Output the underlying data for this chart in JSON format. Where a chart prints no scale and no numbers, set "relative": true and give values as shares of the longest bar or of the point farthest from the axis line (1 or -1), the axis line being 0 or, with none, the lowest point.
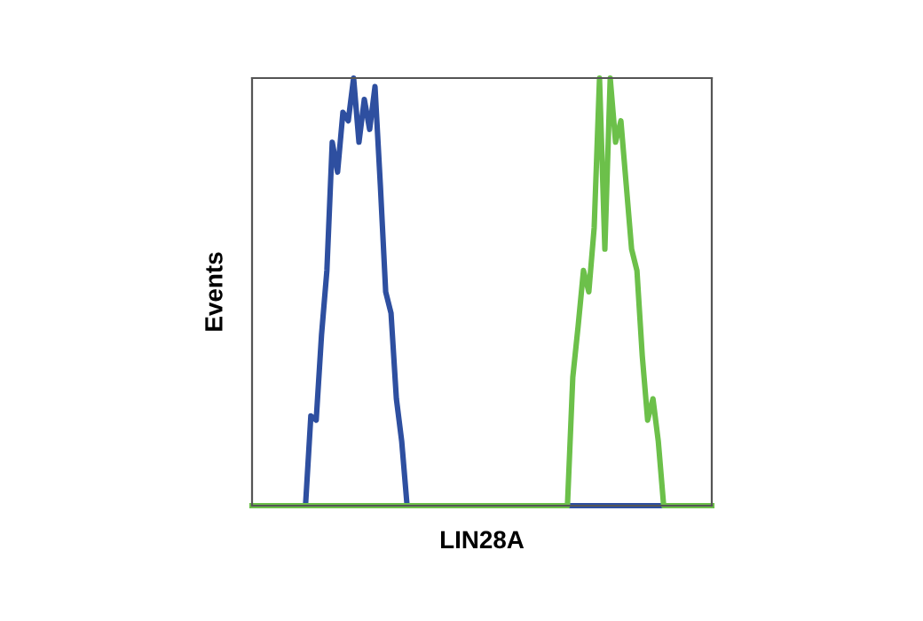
{
  "chart_data": {
    "type": "line",
    "relative": true,
    "xlabel": "LIN28A",
    "ylabel": "Events",
    "categories": [
      null,
      null,
      null,
      null,
      null,
      null,
      null,
      null,
      null,
      null,
      null,
      null,
      null,
      null,
      null,
      null,
      null,
      null,
      null,
      null,
      null,
      null,
      null,
      null,
      null,
      null,
      null,
      null,
      null,
      null,
      null,
      null,
      null,
      null,
      null,
      null,
      null,
      null,
      null,
      null,
      null,
      null,
      null,
      null,
      null,
      null,
      null,
      null,
      null,
      null,
      null,
      null,
      null,
      null,
      null,
      null,
      null,
      null,
      null,
      null,
      null,
      null,
      null,
      null,
      null,
      null,
      null,
      null,
      null,
      null,
      null,
      null,
      null,
      null,
      null,
      null,
      null,
      null,
      null,
      null,
      null,
      null,
      null,
      null,
      null,
      null,
      null
    ],
    "series": [
      {
        "color": "#2e4fa0",
        "values": [
          null,
          null,
          null,
          null,
          null,
          null,
          null,
          0,
          0,
          0,
          0,
          0.21,
          0.2,
          0.4,
          0.55,
          0.85,
          0.78,
          0.92,
          0.9,
          1,
          0.85,
          0.95,
          0.88,
          0.98,
          0.75,
          0.5,
          0.45,
          0.25,
          0.15,
          0,
          0,
          0,
          0,
          0,
          0,
          0,
          0,
          0,
          0,
          0,
          0,
          0,
          0,
          0,
          0,
          0,
          0,
          0,
          0,
          0,
          0,
          0,
          0,
          0,
          0,
          0,
          0,
          0,
          0,
          0,
          0,
          0,
          0,
          0,
          0,
          0,
          0,
          0,
          0,
          0,
          0,
          0,
          0,
          0,
          0,
          0,
          0,
          0,
          0,
          0,
          null,
          null,
          null,
          null,
          null,
          null,
          null
        ]
      },
      {
        "color": "#6cc04a",
        "values": [
          0,
          0,
          0,
          0,
          0,
          0,
          0,
          0,
          0,
          0,
          0,
          0,
          0,
          0,
          0,
          0,
          0,
          0,
          0,
          0,
          0,
          0,
          0,
          0,
          0,
          0,
          0,
          0,
          0,
          0,
          0,
          0,
          0,
          0,
          0,
          0,
          0,
          0,
          0,
          0,
          0,
          0,
          0,
          0,
          0,
          0,
          0,
          0,
          0,
          0,
          0,
          0,
          0,
          0,
          0,
          0,
          0,
          0,
          0,
          0,
          0.3,
          0.42,
          0.55,
          0.5,
          0.65,
          1,
          0.6,
          1,
          0.85,
          0.9,
          0.75,
          0.6,
          0.55,
          0.35,
          0.2,
          0.25,
          0.15,
          0,
          0,
          0,
          0,
          0,
          0,
          0,
          0,
          0,
          0
        ]
      }
    ],
    "legend": false
  }
}
